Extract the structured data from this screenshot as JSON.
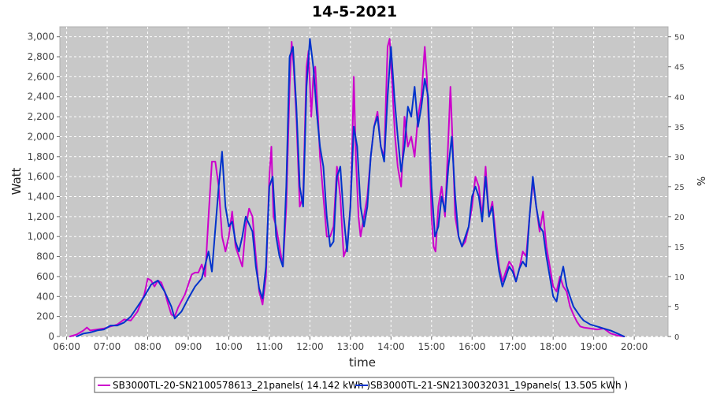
{
  "chart_data": {
    "type": "line",
    "title": "14-5-2021",
    "xlabel": "time",
    "ylabel": "Watt",
    "y2label": "%",
    "xlim": [
      "05:50",
      "20:50"
    ],
    "ylim": [
      0,
      3100
    ],
    "y2lim": [
      0,
      51.67
    ],
    "x_ticks": [
      "06:00",
      "07:00",
      "08:00",
      "09:00",
      "10:00",
      "11:00",
      "12:00",
      "13:00",
      "14:00",
      "15:00",
      "16:00",
      "17:00",
      "18:00",
      "19:00",
      "20:00"
    ],
    "y_ticks": [
      0,
      200,
      400,
      600,
      800,
      1000,
      1200,
      1400,
      1600,
      1800,
      2000,
      2200,
      2400,
      2600,
      2800,
      3000
    ],
    "y2_ticks": [
      0,
      5,
      10,
      15,
      20,
      25,
      30,
      35,
      40,
      45,
      50
    ],
    "grid": true,
    "legend_position": "bottom",
    "colors": {
      "plot_bg": "#c8c8c8",
      "s1": "#cc00cc",
      "s2": "#0033cc"
    },
    "series": [
      {
        "name": "SB3000TL-20-SN2100578613_21panels( 14.142 kWh )",
        "color": "#cc00cc",
        "points": [
          [
            "06:05",
            0
          ],
          [
            "06:15",
            20
          ],
          [
            "06:25",
            60
          ],
          [
            "06:30",
            90
          ],
          [
            "06:35",
            60
          ],
          [
            "06:45",
            70
          ],
          [
            "06:55",
            80
          ],
          [
            "07:05",
            100
          ],
          [
            "07:15",
            120
          ],
          [
            "07:25",
            170
          ],
          [
            "07:35",
            160
          ],
          [
            "07:45",
            250
          ],
          [
            "07:55",
            420
          ],
          [
            "08:00",
            580
          ],
          [
            "08:05",
            560
          ],
          [
            "08:10",
            500
          ],
          [
            "08:15",
            560
          ],
          [
            "08:20",
            540
          ],
          [
            "08:25",
            450
          ],
          [
            "08:30",
            330
          ],
          [
            "08:35",
            220
          ],
          [
            "08:40",
            200
          ],
          [
            "08:45",
            290
          ],
          [
            "08:55",
            420
          ],
          [
            "09:05",
            620
          ],
          [
            "09:10",
            640
          ],
          [
            "09:15",
            640
          ],
          [
            "09:20",
            720
          ],
          [
            "09:25",
            600
          ],
          [
            "09:30",
            1200
          ],
          [
            "09:35",
            1750
          ],
          [
            "09:40",
            1750
          ],
          [
            "09:45",
            1500
          ],
          [
            "09:50",
            1000
          ],
          [
            "09:55",
            850
          ],
          [
            "10:00",
            1000
          ],
          [
            "10:05",
            1250
          ],
          [
            "10:10",
            900
          ],
          [
            "10:15",
            800
          ],
          [
            "10:20",
            700
          ],
          [
            "10:25",
            1100
          ],
          [
            "10:30",
            1280
          ],
          [
            "10:35",
            1200
          ],
          [
            "10:40",
            800
          ],
          [
            "10:45",
            450
          ],
          [
            "10:50",
            320
          ],
          [
            "10:55",
            600
          ],
          [
            "11:00",
            1600
          ],
          [
            "11:03",
            1900
          ],
          [
            "11:06",
            1200
          ],
          [
            "11:10",
            1100
          ],
          [
            "11:15",
            900
          ],
          [
            "11:20",
            700
          ],
          [
            "11:25",
            1300
          ],
          [
            "11:30",
            2500
          ],
          [
            "11:33",
            2950
          ],
          [
            "11:36",
            2700
          ],
          [
            "11:40",
            2200
          ],
          [
            "11:45",
            1300
          ],
          [
            "11:50",
            1400
          ],
          [
            "11:55",
            2700
          ],
          [
            "11:58",
            2860
          ],
          [
            "12:02",
            2200
          ],
          [
            "12:05",
            2600
          ],
          [
            "12:08",
            2700
          ],
          [
            "12:12",
            2200
          ],
          [
            "12:15",
            1800
          ],
          [
            "12:20",
            1400
          ],
          [
            "12:25",
            1000
          ],
          [
            "12:30",
            1000
          ],
          [
            "12:35",
            1100
          ],
          [
            "12:40",
            1700
          ],
          [
            "12:45",
            1400
          ],
          [
            "12:50",
            800
          ],
          [
            "12:55",
            900
          ],
          [
            "13:00",
            1300
          ],
          [
            "13:03",
            2000
          ],
          [
            "13:05",
            2600
          ],
          [
            "13:08",
            1800
          ],
          [
            "13:12",
            1200
          ],
          [
            "13:15",
            1000
          ],
          [
            "13:20",
            1200
          ],
          [
            "13:25",
            1400
          ],
          [
            "13:30",
            1800
          ],
          [
            "13:35",
            2100
          ],
          [
            "13:40",
            2250
          ],
          [
            "13:45",
            1900
          ],
          [
            "13:50",
            1800
          ],
          [
            "13:55",
            2900
          ],
          [
            "13:58",
            2980
          ],
          [
            "14:02",
            2500
          ],
          [
            "14:06",
            2000
          ],
          [
            "14:10",
            1700
          ],
          [
            "14:15",
            1500
          ],
          [
            "14:20",
            2200
          ],
          [
            "14:25",
            1900
          ],
          [
            "14:30",
            2000
          ],
          [
            "14:35",
            1800
          ],
          [
            "14:40",
            2200
          ],
          [
            "14:45",
            2400
          ],
          [
            "14:50",
            2900
          ],
          [
            "14:53",
            2600
          ],
          [
            "14:56",
            2100
          ],
          [
            "15:00",
            1200
          ],
          [
            "15:03",
            900
          ],
          [
            "15:06",
            850
          ],
          [
            "15:10",
            1300
          ],
          [
            "15:15",
            1500
          ],
          [
            "15:20",
            1200
          ],
          [
            "15:25",
            2000
          ],
          [
            "15:28",
            2500
          ],
          [
            "15:32",
            1800
          ],
          [
            "15:35",
            1200
          ],
          [
            "15:40",
            1000
          ],
          [
            "15:45",
            900
          ],
          [
            "15:50",
            950
          ],
          [
            "15:55",
            1100
          ],
          [
            "16:00",
            1300
          ],
          [
            "16:05",
            1600
          ],
          [
            "16:10",
            1500
          ],
          [
            "16:15",
            1200
          ],
          [
            "16:20",
            1700
          ],
          [
            "16:25",
            1200
          ],
          [
            "16:30",
            1350
          ],
          [
            "16:35",
            1000
          ],
          [
            "16:40",
            700
          ],
          [
            "16:45",
            550
          ],
          [
            "16:50",
            650
          ],
          [
            "16:55",
            750
          ],
          [
            "17:00",
            700
          ],
          [
            "17:05",
            550
          ],
          [
            "17:10",
            680
          ],
          [
            "17:15",
            850
          ],
          [
            "17:20",
            800
          ],
          [
            "17:25",
            1200
          ],
          [
            "17:30",
            1550
          ],
          [
            "17:35",
            1300
          ],
          [
            "17:40",
            1050
          ],
          [
            "17:45",
            1250
          ],
          [
            "17:50",
            900
          ],
          [
            "17:55",
            700
          ],
          [
            "18:00",
            500
          ],
          [
            "18:05",
            450
          ],
          [
            "18:10",
            600
          ],
          [
            "18:15",
            500
          ],
          [
            "18:20",
            450
          ],
          [
            "18:25",
            300
          ],
          [
            "18:30",
            220
          ],
          [
            "18:35",
            150
          ],
          [
            "18:40",
            100
          ],
          [
            "18:45",
            90
          ],
          [
            "18:55",
            80
          ],
          [
            "19:05",
            70
          ],
          [
            "19:15",
            80
          ],
          [
            "19:25",
            30
          ],
          [
            "19:35",
            10
          ],
          [
            "19:45",
            0
          ]
        ]
      },
      {
        "name": "SB3000TL-21-SN2130032031_19panels( 13.505 kWh )",
        "color": "#0033cc",
        "points": [
          [
            "06:15",
            0
          ],
          [
            "06:25",
            30
          ],
          [
            "06:35",
            40
          ],
          [
            "06:45",
            60
          ],
          [
            "06:55",
            70
          ],
          [
            "07:05",
            110
          ],
          [
            "07:15",
            110
          ],
          [
            "07:25",
            140
          ],
          [
            "07:35",
            200
          ],
          [
            "07:45",
            300
          ],
          [
            "07:55",
            400
          ],
          [
            "08:05",
            520
          ],
          [
            "08:15",
            560
          ],
          [
            "08:25",
            450
          ],
          [
            "08:35",
            300
          ],
          [
            "08:40",
            180
          ],
          [
            "08:50",
            250
          ],
          [
            "09:00",
            380
          ],
          [
            "09:10",
            500
          ],
          [
            "09:20",
            580
          ],
          [
            "09:30",
            850
          ],
          [
            "09:35",
            650
          ],
          [
            "09:45",
            1500
          ],
          [
            "09:50",
            1850
          ],
          [
            "09:55",
            1300
          ],
          [
            "10:00",
            1100
          ],
          [
            "10:05",
            1150
          ],
          [
            "10:10",
            950
          ],
          [
            "10:15",
            850
          ],
          [
            "10:20",
            1000
          ],
          [
            "10:25",
            1200
          ],
          [
            "10:35",
            1050
          ],
          [
            "10:40",
            700
          ],
          [
            "10:45",
            480
          ],
          [
            "10:50",
            380
          ],
          [
            "10:55",
            700
          ],
          [
            "11:00",
            1500
          ],
          [
            "11:05",
            1600
          ],
          [
            "11:10",
            1000
          ],
          [
            "11:15",
            800
          ],
          [
            "11:20",
            700
          ],
          [
            "11:25",
            1500
          ],
          [
            "11:30",
            2800
          ],
          [
            "11:35",
            2900
          ],
          [
            "11:40",
            2300
          ],
          [
            "11:45",
            1500
          ],
          [
            "11:50",
            1300
          ],
          [
            "11:55",
            2500
          ],
          [
            "12:00",
            2980
          ],
          [
            "12:05",
            2700
          ],
          [
            "12:10",
            2250
          ],
          [
            "12:15",
            1900
          ],
          [
            "12:20",
            1700
          ],
          [
            "12:25",
            1200
          ],
          [
            "12:30",
            900
          ],
          [
            "12:35",
            950
          ],
          [
            "12:40",
            1600
          ],
          [
            "12:45",
            1700
          ],
          [
            "12:50",
            1200
          ],
          [
            "12:55",
            850
          ],
          [
            "13:00",
            1300
          ],
          [
            "13:05",
            2100
          ],
          [
            "13:10",
            1900
          ],
          [
            "13:15",
            1300
          ],
          [
            "13:20",
            1100
          ],
          [
            "13:25",
            1300
          ],
          [
            "13:30",
            1800
          ],
          [
            "13:35",
            2100
          ],
          [
            "13:40",
            2200
          ],
          [
            "13:45",
            1900
          ],
          [
            "13:50",
            1750
          ],
          [
            "13:55",
            2400
          ],
          [
            "14:00",
            2900
          ],
          [
            "14:05",
            2400
          ],
          [
            "14:10",
            2000
          ],
          [
            "14:15",
            1650
          ],
          [
            "14:20",
            1900
          ],
          [
            "14:25",
            2300
          ],
          [
            "14:30",
            2200
          ],
          [
            "14:35",
            2500
          ],
          [
            "14:40",
            2100
          ],
          [
            "14:45",
            2300
          ],
          [
            "14:50",
            2580
          ],
          [
            "14:55",
            2400
          ],
          [
            "15:00",
            1500
          ],
          [
            "15:05",
            1000
          ],
          [
            "15:10",
            1100
          ],
          [
            "15:15",
            1400
          ],
          [
            "15:20",
            1250
          ],
          [
            "15:25",
            1700
          ],
          [
            "15:30",
            2000
          ],
          [
            "15:35",
            1400
          ],
          [
            "15:40",
            1000
          ],
          [
            "15:45",
            900
          ],
          [
            "15:50",
            1000
          ],
          [
            "15:55",
            1100
          ],
          [
            "16:00",
            1400
          ],
          [
            "16:05",
            1500
          ],
          [
            "16:10",
            1400
          ],
          [
            "16:15",
            1150
          ],
          [
            "16:20",
            1600
          ],
          [
            "16:25",
            1200
          ],
          [
            "16:30",
            1300
          ],
          [
            "16:35",
            900
          ],
          [
            "16:40",
            650
          ],
          [
            "16:45",
            500
          ],
          [
            "16:50",
            600
          ],
          [
            "16:55",
            700
          ],
          [
            "17:00",
            650
          ],
          [
            "17:05",
            550
          ],
          [
            "17:10",
            680
          ],
          [
            "17:15",
            750
          ],
          [
            "17:20",
            700
          ],
          [
            "17:25",
            1200
          ],
          [
            "17:30",
            1600
          ],
          [
            "17:35",
            1300
          ],
          [
            "17:40",
            1100
          ],
          [
            "17:45",
            1050
          ],
          [
            "17:50",
            800
          ],
          [
            "17:55",
            600
          ],
          [
            "18:00",
            400
          ],
          [
            "18:05",
            350
          ],
          [
            "18:10",
            550
          ],
          [
            "18:15",
            700
          ],
          [
            "18:20",
            500
          ],
          [
            "18:25",
            400
          ],
          [
            "18:30",
            300
          ],
          [
            "18:35",
            250
          ],
          [
            "18:40",
            200
          ],
          [
            "18:45",
            160
          ],
          [
            "18:55",
            120
          ],
          [
            "19:05",
            100
          ],
          [
            "19:15",
            80
          ],
          [
            "19:25",
            60
          ],
          [
            "19:35",
            30
          ],
          [
            "19:45",
            0
          ]
        ]
      }
    ]
  }
}
